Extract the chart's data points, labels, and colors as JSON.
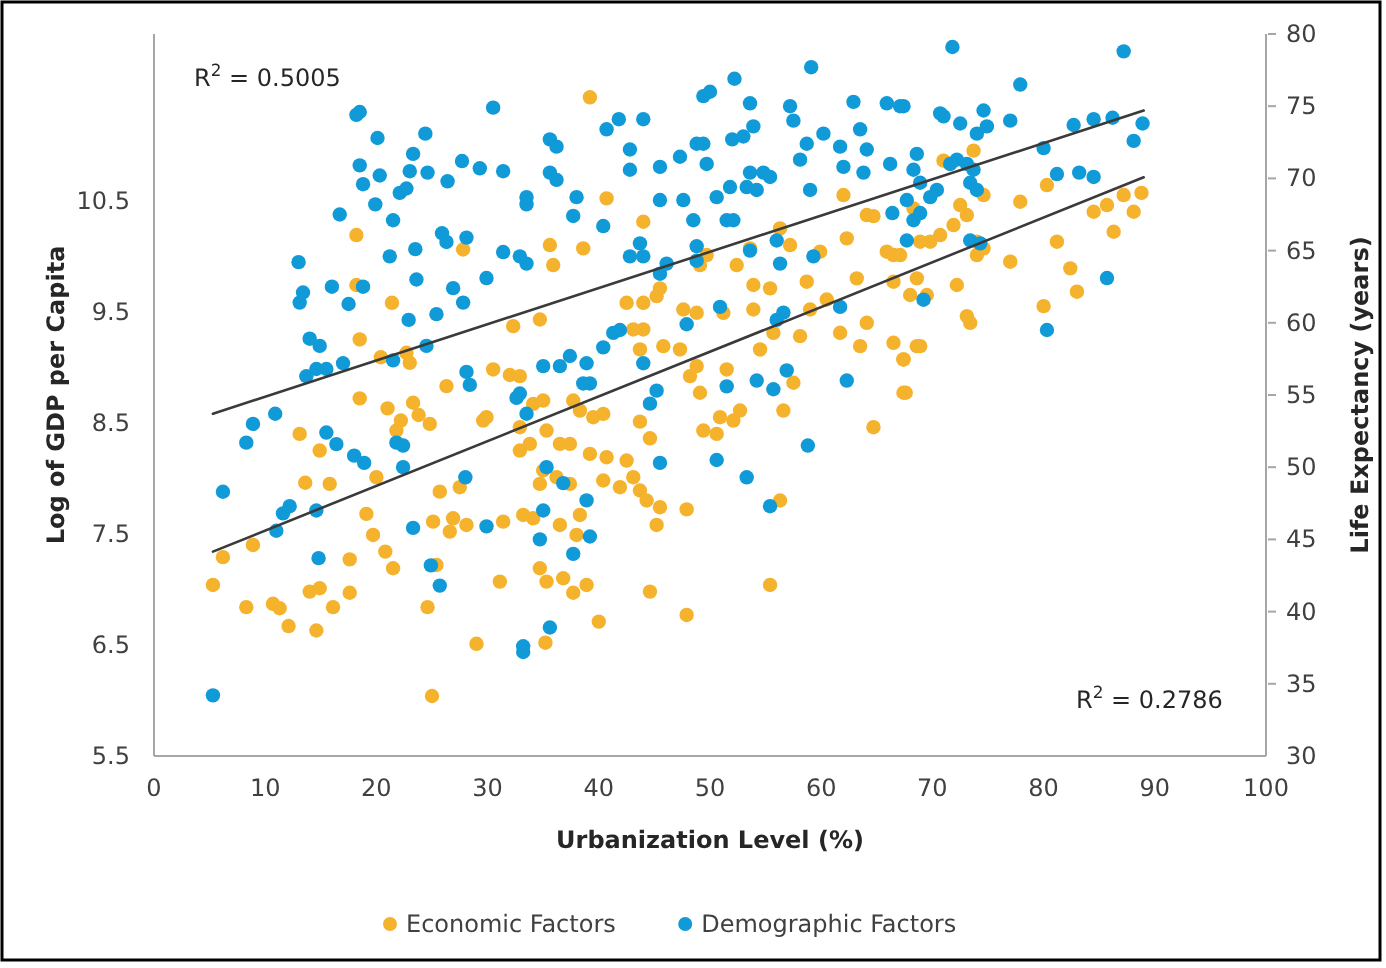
{
  "chart_data": {
    "type": "scatter",
    "xlabel": "Urbanization  Level (%)",
    "ylabel": "Log of GDP per Capita",
    "y2label": "Life Expectancy (years)",
    "xlim": [
      0,
      100
    ],
    "xticks": [
      0,
      10,
      20,
      30,
      40,
      50,
      60,
      70,
      80,
      90,
      100
    ],
    "ylim": [
      5.5,
      12
    ],
    "yticks": [
      5.5,
      6.5,
      7.5,
      8.5,
      9.5,
      10.5
    ],
    "y2lim": [
      30,
      80
    ],
    "y2ticks": [
      30,
      35,
      40,
      45,
      50,
      55,
      60,
      65,
      70,
      75,
      80
    ],
    "legend": "bottom",
    "marker": "circle",
    "annotations": [
      "R$^{2}$ = 0.5005",
      "R$^{2}$ = 0.2786"
    ],
    "series": [
      {
        "name": "Economic Factors",
        "color": "#f5b22c",
        "x": [
          5.3,
          6.2,
          8.3,
          8.9,
          10.7,
          11.3,
          12.1,
          13.1,
          13.6,
          14.0,
          14.9,
          14.6,
          14.9,
          15.8,
          16.1,
          17.6,
          17.6,
          18.2,
          18.2,
          18.5,
          18.5,
          19.1,
          19.7,
          20.0,
          20.4,
          20.8,
          21.0,
          21.4,
          21.5,
          21.8,
          22.2,
          22.7,
          23.0,
          23.3,
          23.8,
          24.6,
          24.8,
          25.1,
          25.4,
          25.7,
          26.3,
          26.6,
          26.9,
          27.5,
          27.8,
          28.1,
          29.0,
          29.6,
          29.9,
          30.5,
          31.1,
          31.4,
          32.0,
          32.3,
          32.9,
          25.0,
          39.2,
          40.7,
          35.6,
          35.9,
          38.6,
          34.7,
          32.9,
          34.1,
          35.0,
          37.7,
          38.3,
          39.5,
          40.4,
          35.3,
          36.5,
          37.4,
          33.8,
          32.9,
          35.0,
          34.7,
          36.2,
          37.4,
          33.2,
          34.1,
          36.5,
          38.0,
          38.3,
          34.7,
          35.3,
          36.8,
          37.7,
          38.9,
          35.2,
          40.0,
          39.2,
          40.7,
          40.4,
          41.9,
          42.5,
          43.1,
          43.7,
          44.3,
          43.7,
          44.6,
          45.5,
          45.2,
          44.6,
          47.9,
          47.9,
          42.5,
          44.0,
          43.1,
          44.0,
          45.2,
          45.5,
          43.7,
          45.8,
          47.6,
          48.8,
          47.3,
          48.2,
          48.8,
          44.0,
          49.1,
          49.7,
          49.1,
          50.9,
          52.1,
          49.4,
          50.6,
          51.5,
          51.2,
          52.4,
          52.7,
          53.9,
          55.4,
          53.6,
          53.9,
          54.5,
          55.7,
          56.3,
          57.2,
          55.4,
          56.3,
          56.6,
          57.5,
          58.1,
          59.0,
          58.7,
          59.9,
          60.5,
          61.7,
          63.5,
          62.3,
          62.0,
          63.2,
          64.1,
          64.7,
          64.1,
          64.7,
          65.9,
          66.5,
          66.5,
          66.5,
          67.4,
          67.6,
          68.6,
          68.3,
          67.1,
          68.9,
          68.0,
          69.5,
          68.6,
          67.4,
          68.9,
          67.4,
          69.8,
          70.7,
          71.0,
          71.6,
          71.9,
          72.5,
          72.2,
          73.1,
          73.7,
          74.0,
          74.6,
          74.6,
          73.1,
          73.4,
          74.0,
          77.0,
          77.9,
          80.0,
          80.3,
          81.2,
          82.4,
          83.0,
          84.5,
          85.7,
          86.3,
          87.2,
          88.1,
          88.8
        ],
        "values": [
          7.04,
          7.29,
          6.84,
          7.4,
          6.87,
          6.83,
          6.67,
          8.4,
          7.96,
          6.98,
          7.01,
          6.63,
          8.25,
          7.95,
          6.84,
          7.27,
          6.97,
          10.19,
          9.74,
          9.25,
          8.72,
          7.68,
          7.49,
          8.01,
          9.09,
          7.34,
          8.63,
          9.58,
          7.19,
          8.43,
          8.52,
          9.13,
          9.04,
          8.68,
          8.57,
          6.84,
          8.49,
          7.61,
          7.22,
          7.88,
          8.83,
          7.52,
          7.64,
          7.92,
          10.06,
          7.58,
          6.51,
          8.52,
          8.55,
          8.98,
          7.07,
          7.61,
          8.93,
          9.37,
          8.46,
          6.04,
          11.43,
          10.52,
          10.1,
          9.92,
          10.07,
          9.43,
          8.92,
          8.67,
          8.7,
          8.7,
          8.61,
          8.55,
          8.58,
          8.43,
          8.31,
          8.31,
          8.31,
          8.25,
          8.07,
          7.95,
          8.01,
          7.95,
          7.67,
          7.64,
          7.58,
          7.49,
          7.67,
          7.19,
          7.07,
          7.1,
          6.97,
          7.04,
          6.52,
          6.71,
          8.22,
          8.19,
          7.98,
          7.92,
          8.16,
          8.01,
          7.89,
          7.8,
          8.51,
          8.36,
          7.74,
          7.58,
          6.98,
          7.72,
          6.77,
          9.58,
          9.58,
          9.34,
          9.34,
          9.64,
          9.71,
          9.16,
          9.19,
          9.52,
          9.49,
          9.16,
          8.92,
          9.01,
          10.31,
          9.92,
          10.01,
          8.77,
          8.55,
          8.52,
          8.43,
          8.4,
          8.98,
          9.49,
          9.92,
          8.61,
          9.74,
          9.71,
          10.07,
          9.52,
          9.16,
          9.31,
          10.25,
          10.1,
          7.04,
          7.8,
          8.61,
          8.86,
          9.28,
          9.52,
          9.77,
          10.04,
          9.61,
          9.31,
          9.19,
          10.16,
          10.55,
          9.8,
          9.4,
          8.46,
          10.37,
          10.36,
          10.04,
          10.01,
          9.77,
          9.22,
          9.07,
          8.77,
          9.19,
          10.43,
          10.01,
          10.13,
          9.65,
          9.65,
          9.8,
          9.07,
          9.19,
          8.77,
          10.13,
          10.19,
          10.86,
          10.83,
          10.28,
          10.46,
          9.74,
          10.37,
          10.95,
          10.01,
          10.55,
          10.07,
          9.46,
          9.4,
          10.13,
          9.95,
          10.49,
          9.55,
          10.64,
          10.13,
          9.89,
          9.68,
          10.4,
          10.46,
          10.22,
          10.55,
          10.4,
          10.57
        ]
      },
      {
        "name": "Demographic Factors",
        "axis": "y2",
        "color": "#109ad7",
        "x": [
          5.3,
          6.2,
          8.3,
          8.9,
          10.9,
          11.0,
          11.6,
          12.2,
          13.0,
          13.1,
          13.4,
          13.7,
          14.6,
          15.5,
          14.0,
          14.9,
          14.6,
          14.8,
          15.5,
          16.4,
          16.0,
          16.7,
          17.0,
          18.2,
          18.5,
          18.5,
          18.8,
          17.5,
          18.0,
          18.8,
          18.9,
          19.9,
          20.1,
          20.3,
          21.2,
          21.5,
          21.8,
          22.4,
          22.1,
          22.7,
          21.5,
          22.4,
          23.0,
          23.3,
          23.5,
          23.6,
          22.9,
          23.3,
          24.4,
          24.6,
          24.5,
          24.9,
          25.4,
          25.7,
          25.9,
          26.3,
          26.4,
          26.9,
          27.8,
          27.7,
          28.1,
          28.1,
          28.4,
          28.0,
          29.3,
          30.5,
          29.9,
          29.9,
          31.4,
          31.4,
          33.2,
          33.5,
          33.5,
          32.6,
          32.9,
          33.5,
          35.6,
          36.2,
          35.6,
          36.2,
          38.0,
          37.7,
          32.9,
          33.5,
          33.2,
          35.6,
          35.0,
          36.5,
          37.4,
          38.9,
          39.2,
          38.6,
          35.3,
          36.8,
          35.0,
          34.7,
          37.7,
          38.9,
          39.2,
          40.4,
          41.3,
          41.9,
          40.7,
          41.8,
          44.0,
          40.4,
          42.8,
          42.8,
          43.7,
          44.0,
          42.8,
          44.0,
          44.6,
          45.2,
          45.5,
          45.5,
          45.5,
          45.5,
          46.1,
          47.3,
          47.6,
          48.5,
          47.9,
          48.8,
          49.4,
          49.7,
          49.4,
          50.0,
          48.8,
          48.8,
          50.6,
          51.5,
          52.1,
          50.9,
          51.5,
          50.6,
          51.8,
          52.2,
          52.0,
          53.0,
          53.3,
          53.6,
          53.9,
          53.6,
          54.8,
          55.4,
          54.2,
          53.3,
          53.6,
          54.2,
          55.4,
          55.7,
          56.0,
          56.3,
          56.0,
          56.6,
          56.9,
          57.2,
          57.5,
          58.1,
          59.0,
          58.7,
          59.1,
          58.8,
          59.3,
          60.2,
          61.7,
          62.0,
          61.7,
          62.3,
          62.9,
          63.5,
          63.8,
          64.1,
          65.9,
          67.4,
          66.2,
          66.4,
          68.3,
          67.1,
          68.6,
          68.9,
          67.7,
          68.3,
          67.7,
          68.9,
          69.8,
          70.4,
          71.0,
          70.7,
          71.8,
          71.6,
          72.2,
          72.5,
          73.1,
          73.4,
          74.0,
          73.7,
          73.4,
          74.0,
          74.6,
          74.9,
          74.3,
          69.2,
          77.0,
          77.9,
          80.0,
          81.2,
          80.3,
          82.7,
          83.2,
          84.5,
          84.5,
          86.2,
          85.7,
          87.2,
          88.1,
          88.9
        ],
        "values": [
          34.2,
          48.3,
          51.7,
          53.0,
          53.7,
          45.6,
          46.8,
          47.3,
          64.2,
          61.4,
          62.1,
          56.3,
          56.8,
          56.8,
          58.9,
          58.4,
          47.0,
          43.7,
          52.4,
          51.6,
          62.5,
          67.5,
          57.2,
          74.4,
          74.6,
          70.9,
          69.6,
          61.3,
          50.8,
          62.5,
          50.3,
          68.2,
          72.8,
          70.2,
          64.6,
          57.4,
          51.7,
          51.5,
          69.0,
          69.3,
          67.1,
          50.0,
          70.5,
          71.7,
          65.1,
          63.0,
          60.2,
          45.8,
          73.1,
          70.4,
          58.4,
          43.2,
          60.6,
          41.8,
          66.2,
          65.6,
          69.8,
          62.4,
          61.4,
          71.2,
          65.9,
          56.6,
          55.7,
          49.3,
          70.7,
          74.9,
          63.1,
          45.9,
          70.5,
          64.9,
          37.2,
          68.2,
          64.1,
          54.8,
          64.6,
          68.7,
          72.7,
          72.2,
          70.4,
          69.9,
          68.7,
          67.4,
          55.1,
          53.7,
          37.6,
          38.9,
          57.0,
          57.0,
          57.7,
          57.2,
          55.8,
          55.8,
          50.0,
          48.9,
          47.0,
          45.0,
          44.0,
          47.7,
          45.2,
          58.3,
          59.3,
          59.5,
          73.4,
          74.1,
          74.1,
          66.7,
          72.0,
          70.6,
          65.5,
          64.6,
          64.6,
          57.2,
          54.4,
          55.3,
          50.3,
          68.5,
          70.8,
          63.4,
          64.1,
          71.5,
          68.5,
          67.1,
          59.9,
          72.4,
          72.4,
          71.0,
          75.7,
          76.0,
          65.3,
          64.3,
          68.7,
          67.1,
          67.1,
          61.1,
          55.6,
          50.5,
          69.4,
          76.9,
          72.7,
          72.9,
          49.3,
          75.2,
          73.6,
          70.4,
          70.4,
          70.1,
          69.2,
          69.4,
          65.0,
          56.0,
          47.3,
          55.4,
          65.7,
          64.1,
          60.2,
          60.7,
          56.7,
          75.0,
          74.0,
          71.3,
          69.2,
          72.4,
          77.7,
          51.5,
          64.6,
          73.1,
          72.2,
          70.8,
          61.1,
          56.0,
          75.3,
          73.4,
          70.4,
          72.0,
          75.2,
          75.0,
          71.0,
          67.6,
          70.6,
          75.0,
          71.7,
          69.7,
          68.5,
          67.1,
          65.7,
          67.6,
          68.7,
          69.2,
          74.3,
          74.5,
          79.1,
          71.0,
          71.3,
          73.8,
          71.0,
          69.7,
          69.2,
          70.6,
          65.7,
          73.1,
          74.7,
          73.6,
          65.5,
          61.6,
          74.0,
          76.5,
          72.1,
          70.3,
          59.5,
          73.7,
          70.4,
          74.1,
          70.1,
          74.2,
          63.1,
          78.8,
          72.6,
          73.8
        ]
      },
      {
        "type": "line",
        "marker": "none",
        "color": "#3a3a3a",
        "x": [
          5.3,
          89.0
        ],
        "values": [
          7.34,
          10.71
        ]
      },
      {
        "type": "line",
        "marker": "none",
        "axis": "y2",
        "color": "#3a3a3a",
        "x": [
          5.3,
          89.0
        ],
        "values": [
          53.7,
          74.7
        ]
      }
    ]
  }
}
